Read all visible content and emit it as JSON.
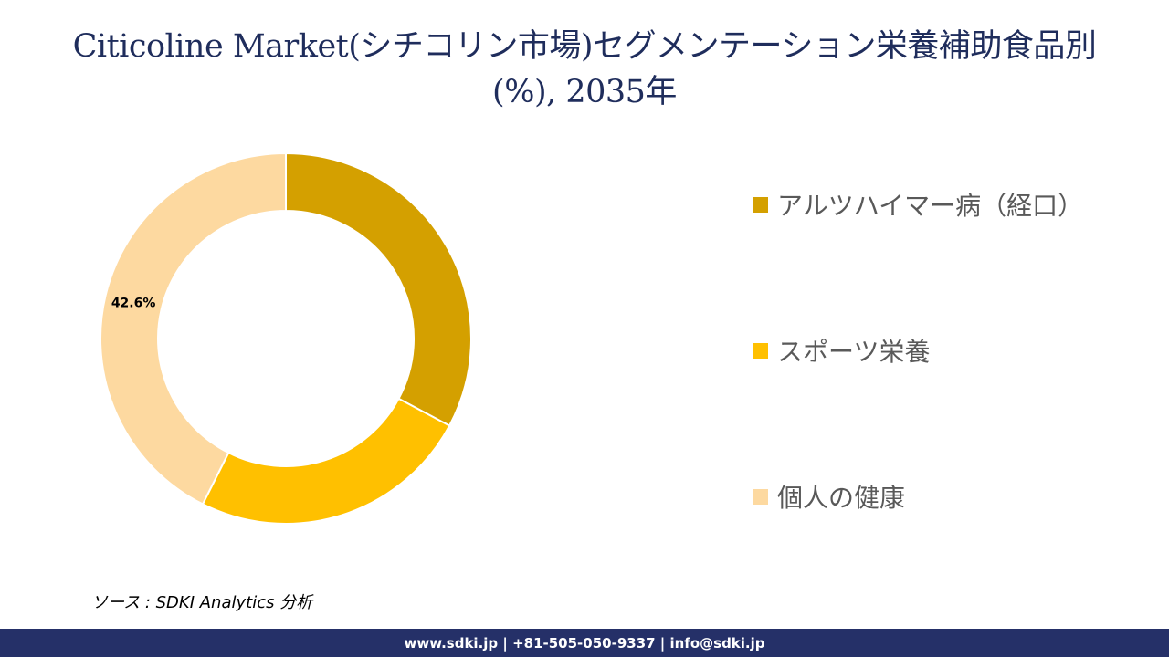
{
  "title_line1": "Citicoline Market(シチコリン市場)セグメンテーション栄養補助食品別",
  "title_line2": "(%), 2035年",
  "source": "ソース : SDKI Analytics 分析",
  "footer": "www.sdki.jp | +81-505-050-9337 | info@sdki.jp",
  "chart_data": {
    "type": "pie",
    "donut": true,
    "title": "Citicoline Market(シチコリン市場)セグメンテーション栄養補助食品別(%), 2035年",
    "categories": [
      "アルツハイマー病（経口）",
      "スポーツ栄養",
      "個人の健康"
    ],
    "values": [
      32.8,
      24.6,
      42.6
    ],
    "colors": [
      "#d4a000",
      "#ffc000",
      "#fdd9a0"
    ],
    "data_labels": [
      "",
      "",
      "42.6%"
    ],
    "legend_position": "right"
  }
}
